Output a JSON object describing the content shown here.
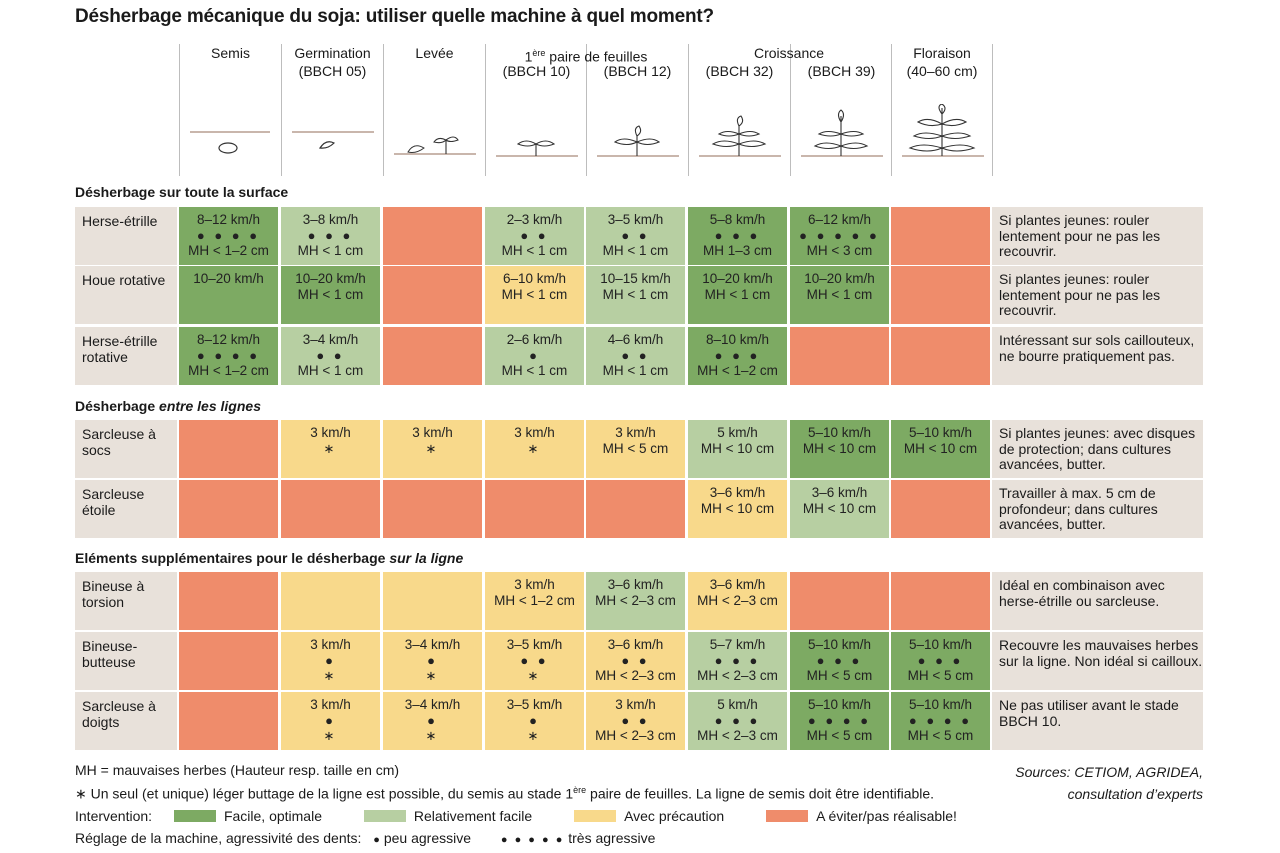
{
  "title": "Désherbage mécanique du soja: utiliser quelle machine à quel moment?",
  "stages": [
    {
      "label": "Semis",
      "sub": ""
    },
    {
      "label": "Germination",
      "sub": "(BBCH 05)"
    },
    {
      "label": "Levée",
      "sub": ""
    },
    {
      "label": "",
      "sub": "(BBCH 10)"
    },
    {
      "label": "",
      "sub": "(BBCH 12)"
    },
    {
      "label": "",
      "sub": "(BBCH 32)"
    },
    {
      "label": "",
      "sub": "(BBCH 39)"
    },
    {
      "label": "Floraison",
      "sub": "(40–60 cm)"
    }
  ],
  "group_labels": {
    "feuilles_pre": "1",
    "feuilles_sup": "ère",
    "feuilles_post": " paire de feuilles",
    "croissance": "Croissance"
  },
  "sections": {
    "surface": "Désherbage sur toute la surface",
    "lignes_pre": "Désherbage ",
    "lignes_em": "entre les lignes",
    "ligne_pre": "Eléments supplémentaires pour le désherbage ",
    "ligne_em": "sur la ligne"
  },
  "colors": {
    "facile": "#7daa63",
    "relativement": "#b7cfa2",
    "precaution": "#f8d98b",
    "eviter": "#ef8c6b"
  },
  "rows": [
    {
      "machine": "Herse-étrille",
      "note": "Si plantes jeunes: rouler lentement pour ne pas les recouvrir.",
      "cells": [
        {
          "c": "fac",
          "l1": "8–12 km/h",
          "l2": "● ● ● ●",
          "l3": "MH < 1–2 cm"
        },
        {
          "c": "rel",
          "l1": "3–8 km/h",
          "l2": "● ● ●",
          "l3": "MH < 1 cm"
        },
        {
          "c": "evi",
          "l1": "",
          "l2": "",
          "l3": ""
        },
        {
          "c": "rel",
          "l1": "2–3 km/h",
          "l2": "● ●",
          "l3": "MH < 1 cm"
        },
        {
          "c": "rel",
          "l1": "3–5 km/h",
          "l2": "● ●",
          "l3": "MH < 1 cm"
        },
        {
          "c": "fac",
          "l1": "5–8 km/h",
          "l2": "● ● ●",
          "l3": "MH 1–3 cm"
        },
        {
          "c": "fac",
          "l1": "6–12 km/h",
          "l2": "● ● ● ● ●",
          "l3": "MH < 3 cm"
        },
        {
          "c": "evi",
          "l1": "",
          "l2": "",
          "l3": ""
        }
      ]
    },
    {
      "machine": "Houe rotative",
      "note": "Si plantes jeunes: rouler lentement pour ne pas les recouvrir.",
      "cells": [
        {
          "c": "fac",
          "l1": "10–20 km/h",
          "l2": "",
          "l3": ""
        },
        {
          "c": "fac",
          "l1": "10–20 km/h",
          "l2": "MH < 1 cm",
          "l3": ""
        },
        {
          "c": "evi",
          "l1": "",
          "l2": "",
          "l3": ""
        },
        {
          "c": "pre",
          "l1": "6–10 km/h",
          "l2": "MH < 1 cm",
          "l3": ""
        },
        {
          "c": "rel",
          "l1": "10–15 km/h",
          "l2": "MH < 1 cm",
          "l3": ""
        },
        {
          "c": "fac",
          "l1": "10–20 km/h",
          "l2": "MH < 1 cm",
          "l3": ""
        },
        {
          "c": "fac",
          "l1": "10–20 km/h",
          "l2": "MH < 1 cm",
          "l3": ""
        },
        {
          "c": "evi",
          "l1": "",
          "l2": "",
          "l3": ""
        }
      ]
    },
    {
      "machine": "Herse-étrille rotative",
      "note": "Intéressant sur sols caillouteux, ne bourre pratiquement pas.",
      "cells": [
        {
          "c": "fac",
          "l1": "8–12 km/h",
          "l2": "● ● ● ●",
          "l3": "MH < 1–2 cm"
        },
        {
          "c": "rel",
          "l1": "3–4 km/h",
          "l2": "● ●",
          "l3": "MH < 1 cm"
        },
        {
          "c": "evi",
          "l1": "",
          "l2": "",
          "l3": ""
        },
        {
          "c": "rel",
          "l1": "2–6 km/h",
          "l2": "●",
          "l3": "MH < 1 cm"
        },
        {
          "c": "rel",
          "l1": "4–6 km/h",
          "l2": "● ●",
          "l3": "MH < 1 cm"
        },
        {
          "c": "fac",
          "l1": "8–10 km/h",
          "l2": "● ● ●",
          "l3": "MH < 1–2 cm"
        },
        {
          "c": "evi",
          "l1": "",
          "l2": "",
          "l3": ""
        },
        {
          "c": "evi",
          "l1": "",
          "l2": "",
          "l3": ""
        }
      ]
    },
    {
      "machine": "Sarcleuse à socs",
      "note": "Si plantes jeunes: avec disques de protection; dans cultures avancées, butter.",
      "cells": [
        {
          "c": "evi",
          "l1": "",
          "l2": "",
          "l3": ""
        },
        {
          "c": "pre",
          "l1": "3 km/h",
          "l2": "∗",
          "l3": ""
        },
        {
          "c": "pre",
          "l1": "3 km/h",
          "l2": "∗",
          "l3": ""
        },
        {
          "c": "pre",
          "l1": "3 km/h",
          "l2": "∗",
          "l3": ""
        },
        {
          "c": "pre",
          "l1": "3 km/h",
          "l2": "MH < 5 cm",
          "l3": ""
        },
        {
          "c": "rel",
          "l1": "5 km/h",
          "l2": "MH < 10 cm",
          "l3": ""
        },
        {
          "c": "fac",
          "l1": "5–10 km/h",
          "l2": "MH < 10 cm",
          "l3": ""
        },
        {
          "c": "fac",
          "l1": "5–10 km/h",
          "l2": "MH < 10 cm",
          "l3": ""
        }
      ]
    },
    {
      "machine": "Sarcleuse étoile",
      "note": "Travailler à max. 5 cm de profondeur; dans cultures avancées, butter.",
      "cells": [
        {
          "c": "evi",
          "l1": "",
          "l2": "",
          "l3": ""
        },
        {
          "c": "evi",
          "l1": "",
          "l2": "",
          "l3": ""
        },
        {
          "c": "evi",
          "l1": "",
          "l2": "",
          "l3": ""
        },
        {
          "c": "evi",
          "l1": "",
          "l2": "",
          "l3": ""
        },
        {
          "c": "evi",
          "l1": "",
          "l2": "",
          "l3": ""
        },
        {
          "c": "pre",
          "l1": "3–6 km/h",
          "l2": "MH < 10 cm",
          "l3": ""
        },
        {
          "c": "rel",
          "l1": "3–6 km/h",
          "l2": "MH < 10 cm",
          "l3": ""
        },
        {
          "c": "evi",
          "l1": "",
          "l2": "",
          "l3": ""
        }
      ]
    },
    {
      "machine": "Bineuse à torsion",
      "note": "Idéal en combinaison avec herse-étrille ou sarcleuse.",
      "cells": [
        {
          "c": "evi",
          "l1": "",
          "l2": "",
          "l3": ""
        },
        {
          "c": "pre",
          "l1": "",
          "l2": "",
          "l3": ""
        },
        {
          "c": "pre",
          "l1": "",
          "l2": "",
          "l3": ""
        },
        {
          "c": "pre",
          "l1": "3 km/h",
          "l2": "MH < 1–2 cm",
          "l3": ""
        },
        {
          "c": "rel",
          "l1": "3–6 km/h",
          "l2": "MH < 2–3 cm",
          "l3": ""
        },
        {
          "c": "pre",
          "l1": "3–6 km/h",
          "l2": "MH < 2–3 cm",
          "l3": ""
        },
        {
          "c": "evi",
          "l1": "",
          "l2": "",
          "l3": ""
        },
        {
          "c": "evi",
          "l1": "",
          "l2": "",
          "l3": ""
        }
      ]
    },
    {
      "machine": "Bineuse-butteuse",
      "note": "Recouvre les mauvaises herbes sur la ligne. Non idéal si cailloux.",
      "cells": [
        {
          "c": "evi",
          "l1": "",
          "l2": "",
          "l3": ""
        },
        {
          "c": "pre",
          "l1": "3 km/h",
          "l2": "●",
          "l3": "∗"
        },
        {
          "c": "pre",
          "l1": "3–4 km/h",
          "l2": "●",
          "l3": "∗"
        },
        {
          "c": "pre",
          "l1": "3–5 km/h",
          "l2": "● ●",
          "l3": "∗"
        },
        {
          "c": "pre",
          "l1": "3–6 km/h",
          "l2": "● ●",
          "l3": "MH < 2–3 cm"
        },
        {
          "c": "rel",
          "l1": "5–7 km/h",
          "l2": "● ● ●",
          "l3": "MH < 2–3 cm"
        },
        {
          "c": "fac",
          "l1": "5–10 km/h",
          "l2": "● ● ●",
          "l3": "MH < 5 cm"
        },
        {
          "c": "fac",
          "l1": "5–10 km/h",
          "l2": "● ● ●",
          "l3": "MH < 5 cm"
        }
      ]
    },
    {
      "machine": "Sarcleuse à doigts",
      "note": "Ne pas utiliser avant le stade BBCH 10.",
      "cells": [
        {
          "c": "evi",
          "l1": "",
          "l2": "",
          "l3": ""
        },
        {
          "c": "pre",
          "l1": "3 km/h",
          "l2": "●",
          "l3": "∗"
        },
        {
          "c": "pre",
          "l1": "3–4 km/h",
          "l2": "●",
          "l3": "∗"
        },
        {
          "c": "pre",
          "l1": "3–5 km/h",
          "l2": "●",
          "l3": "∗"
        },
        {
          "c": "pre",
          "l1": "3 km/h",
          "l2": "● ●",
          "l3": "MH < 2–3 cm"
        },
        {
          "c": "rel",
          "l1": "5 km/h",
          "l2": "● ● ●",
          "l3": "MH < 2–3 cm"
        },
        {
          "c": "fac",
          "l1": "5–10 km/h",
          "l2": "● ● ● ●",
          "l3": "MH < 5 cm"
        },
        {
          "c": "fac",
          "l1": "5–10 km/h",
          "l2": "● ● ● ●",
          "l3": "MH < 5 cm"
        }
      ]
    }
  ],
  "footnotes": {
    "mh": "MH = mauvaises herbes (Hauteur resp. taille en cm)",
    "star_pre": "∗ Un seul (et unique) léger buttage de la ligne est possible, du semis au stade 1",
    "star_sup": "ère",
    "star_post": " paire de feuilles. La ligne de semis doit être identifiable.",
    "source1": "Sources: CETIOM, AGRIDEA,",
    "source2": "consultation d’experts"
  },
  "legend": {
    "label": "Intervention:",
    "items": [
      "Facile, optimale",
      "Relativement facile",
      "Avec précaution",
      "A éviter/pas réalisable!"
    ],
    "reglage_label": "Réglage de la machine, agressivité des dents:",
    "low_dots": "●",
    "low": "peu agressive",
    "high_dots": "● ● ● ● ●",
    "high": "très agressive"
  }
}
